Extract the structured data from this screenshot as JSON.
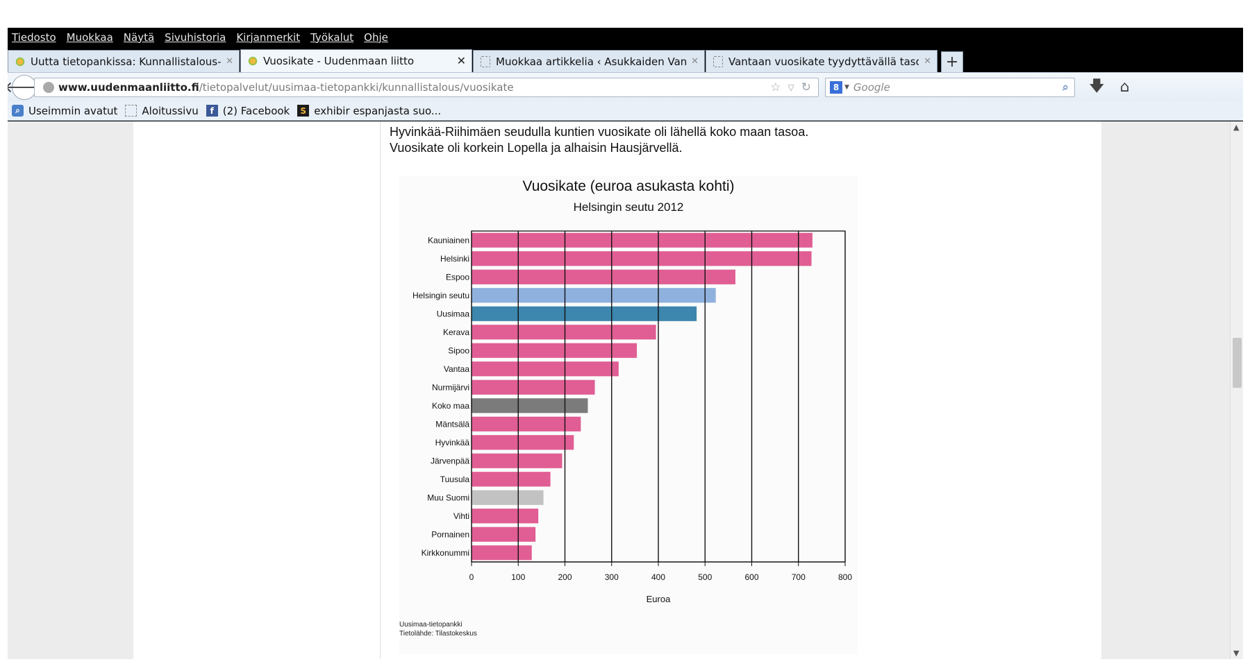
{
  "menu": [
    "Tiedosto",
    "Muokkaa",
    "Näytä",
    "Sivuhistoria",
    "Kirjanmerkit",
    "Työkalut",
    "Ohje"
  ],
  "tabs": [
    {
      "label": "Uutta tietopankissa: Kunnallistalous-s...",
      "icon": "sun-icon",
      "active": false
    },
    {
      "label": "Vuosikate - Uudenmaan liitto",
      "icon": "sun-icon",
      "active": true
    },
    {
      "label": "Muokkaa artikkelia ‹ Asukkaiden Vant...",
      "icon": "page-icon",
      "active": false
    },
    {
      "label": "Vantaan vuosikate tyydyttävällä tasoll...",
      "icon": "page-icon",
      "active": false
    }
  ],
  "new_tab_label": "+",
  "url": {
    "domain": "www.uudenmaanliitto.fi",
    "path": "/tietopalvelut/uusimaa-tietopankki/kunnallistalous/vuosikate"
  },
  "search": {
    "placeholder": "Google",
    "engine_icon": "google-plus-icon"
  },
  "bookmarks": [
    {
      "label": "Useimmin avatut",
      "icon": "most-visited-icon"
    },
    {
      "label": "Aloitussivu",
      "icon": "page-icon"
    },
    {
      "label": "(2) Facebook",
      "icon": "facebook-icon"
    },
    {
      "label": "exhibir espanjasta suo...",
      "icon": "s-icon"
    }
  ],
  "article": {
    "intro_line1": "Hyvinkää-Riihimäen seudulla kuntien vuosikate oli lähellä koko maan tasoa.",
    "intro_line2": "Vuosikate oli korkein Lopella ja alhaisin Hausjärvellä."
  },
  "chart_data": {
    "type": "bar",
    "orientation": "horizontal",
    "title": "Vuosikate (euroa asukasta kohti)",
    "subtitle": "Helsingin seutu 2012",
    "xlabel": "Euroa",
    "xlim": [
      0,
      800
    ],
    "xticks": [
      0,
      100,
      200,
      300,
      400,
      500,
      600,
      700,
      800
    ],
    "grid": true,
    "categories": [
      "Kauniainen",
      "Helsinki",
      "Espoo",
      "Helsingin seutu",
      "Uusimaa",
      "Kerava",
      "Sipoo",
      "Vantaa",
      "Nurmijärvi",
      "Koko maa",
      "Mäntsälä",
      "Hyvinkää",
      "Järvenpää",
      "Tuusula",
      "Muu Suomi",
      "Vihti",
      "Pornainen",
      "Kirkkonummi"
    ],
    "values": [
      730,
      728,
      565,
      523,
      482,
      395,
      354,
      315,
      264,
      249,
      234,
      219,
      194,
      169,
      154,
      143,
      137,
      129
    ],
    "colors": [
      "#e05e93",
      "#e05e93",
      "#e05e93",
      "#8fb1dd",
      "#3d86ad",
      "#e05e93",
      "#e05e93",
      "#e05e93",
      "#e05e93",
      "#7b7b7b",
      "#e05e93",
      "#e05e93",
      "#e05e93",
      "#e05e93",
      "#c2c2c2",
      "#e05e93",
      "#e05e93",
      "#e05e93"
    ],
    "source_line1": "Uusimaa-tietopankki",
    "source_line2": "Tietolähde: Tilastokeskus"
  }
}
